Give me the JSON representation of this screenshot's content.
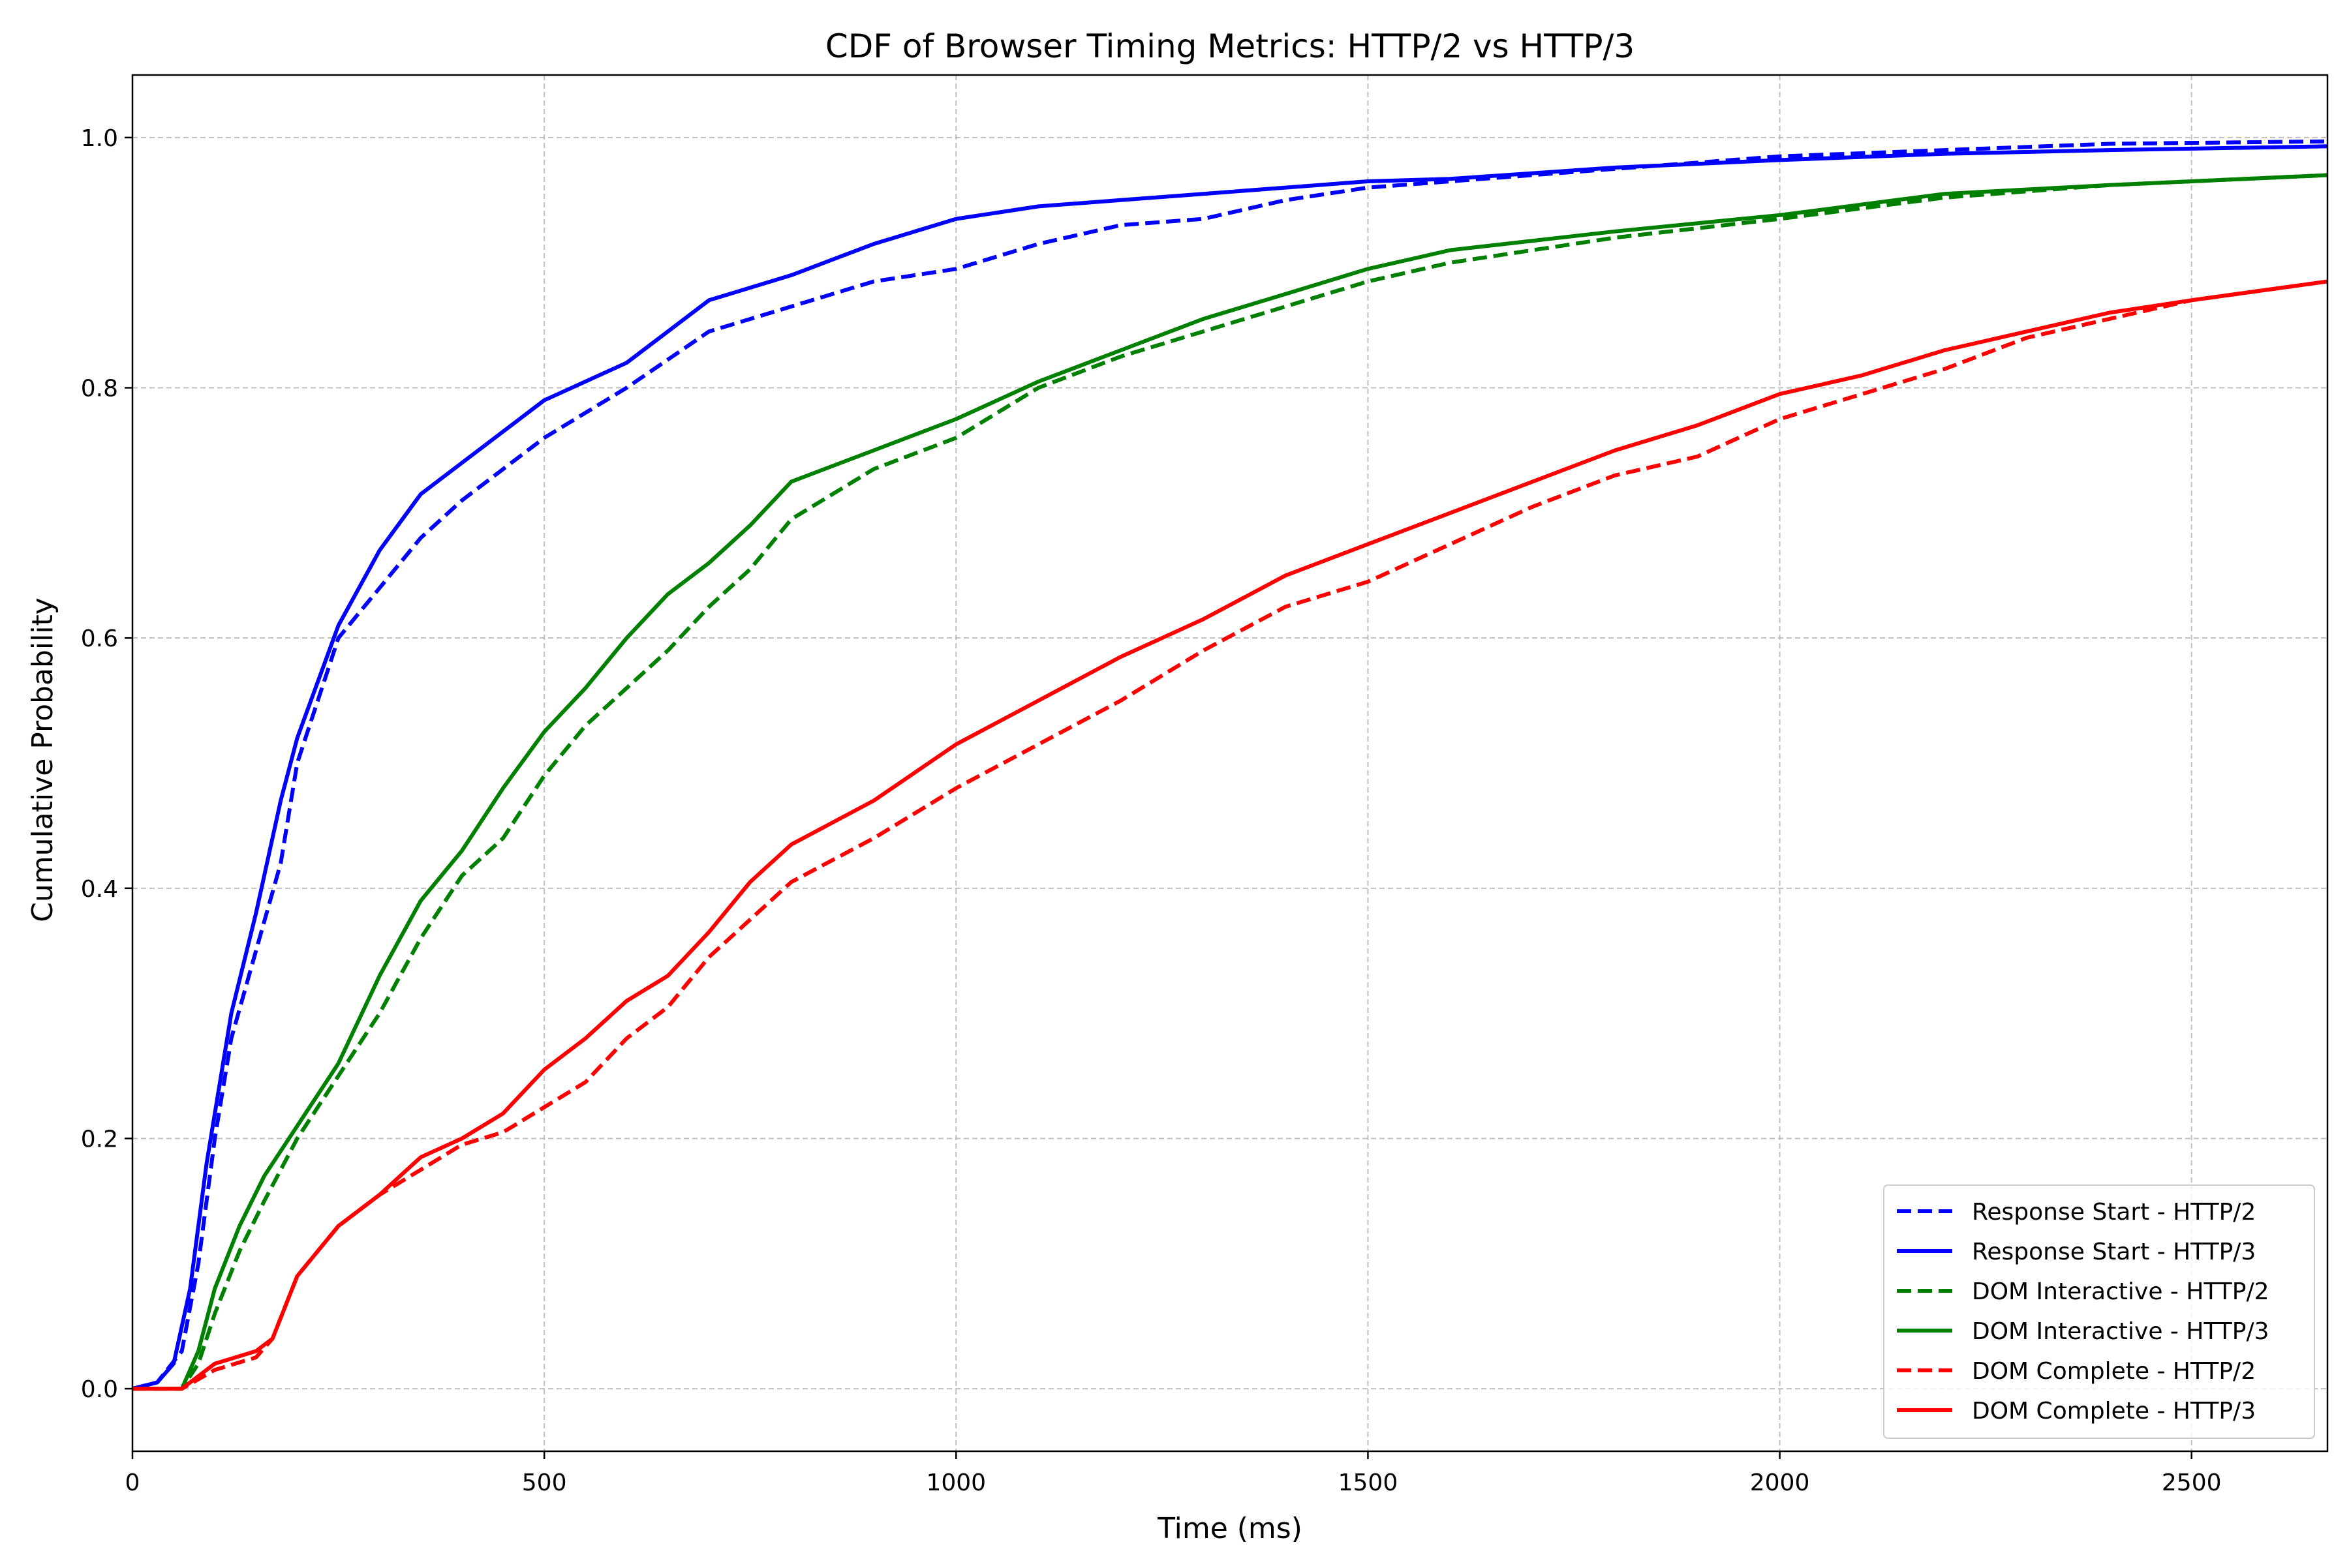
{
  "chart_data": {
    "type": "line",
    "title": "CDF of Browser Timing Metrics: HTTP/2 vs HTTP/3",
    "xlabel": "Time (ms)",
    "ylabel": "Cumulative Probability",
    "xlim": [
      0,
      2665
    ],
    "ylim": [
      -0.05,
      1.05
    ],
    "xticks": [
      0,
      500,
      1000,
      1500,
      2000,
      2500
    ],
    "yticks": [
      0.0,
      0.2,
      0.4,
      0.6,
      0.8,
      1.0
    ],
    "xtick_labels": [
      "0",
      "500",
      "1000",
      "1500",
      "2000",
      "2500"
    ],
    "ytick_labels": [
      "0.0",
      "0.2",
      "0.4",
      "0.6",
      "0.8",
      "1.0"
    ],
    "grid": true,
    "legend_position": "lower-right",
    "series": [
      {
        "name": "Response Start - HTTP/2",
        "color": "#0000ff",
        "linestyle": "dashed",
        "x": [
          0,
          30,
          60,
          80,
          100,
          120,
          150,
          180,
          200,
          250,
          300,
          350,
          400,
          500,
          600,
          700,
          800,
          900,
          1000,
          1100,
          1200,
          1300,
          1400,
          1500,
          1600,
          1800,
          2000,
          2200,
          2400,
          2665
        ],
        "y": [
          0.0,
          0.005,
          0.03,
          0.1,
          0.2,
          0.28,
          0.35,
          0.42,
          0.5,
          0.6,
          0.64,
          0.68,
          0.71,
          0.76,
          0.8,
          0.845,
          0.865,
          0.885,
          0.895,
          0.915,
          0.93,
          0.935,
          0.95,
          0.96,
          0.965,
          0.975,
          0.985,
          0.99,
          0.995,
          0.997
        ]
      },
      {
        "name": "Response Start - HTTP/3",
        "color": "#0000ff",
        "linestyle": "solid",
        "x": [
          0,
          30,
          50,
          70,
          90,
          120,
          150,
          180,
          200,
          250,
          300,
          350,
          400,
          500,
          600,
          700,
          800,
          900,
          1000,
          1100,
          1200,
          1300,
          1400,
          1500,
          1600,
          1800,
          2000,
          2200,
          2400,
          2665
        ],
        "y": [
          0.0,
          0.005,
          0.02,
          0.08,
          0.18,
          0.3,
          0.38,
          0.47,
          0.52,
          0.61,
          0.67,
          0.715,
          0.74,
          0.79,
          0.82,
          0.87,
          0.89,
          0.915,
          0.935,
          0.945,
          0.95,
          0.955,
          0.96,
          0.965,
          0.967,
          0.976,
          0.982,
          0.987,
          0.99,
          0.993
        ]
      },
      {
        "name": "DOM Interactive - HTTP/2",
        "color": "#008000",
        "linestyle": "dashed",
        "x": [
          0,
          60,
          80,
          100,
          130,
          160,
          200,
          250,
          300,
          350,
          400,
          450,
          500,
          550,
          600,
          650,
          700,
          750,
          800,
          900,
          1000,
          1100,
          1200,
          1300,
          1400,
          1500,
          1600,
          1800,
          2000,
          2200,
          2400,
          2665
        ],
        "y": [
          0.0,
          0.0,
          0.02,
          0.06,
          0.11,
          0.15,
          0.2,
          0.25,
          0.3,
          0.36,
          0.41,
          0.44,
          0.49,
          0.53,
          0.56,
          0.59,
          0.625,
          0.655,
          0.695,
          0.735,
          0.76,
          0.8,
          0.825,
          0.845,
          0.865,
          0.885,
          0.9,
          0.92,
          0.935,
          0.952,
          0.962,
          0.97
        ]
      },
      {
        "name": "DOM Interactive - HTTP/3",
        "color": "#008000",
        "linestyle": "solid",
        "x": [
          0,
          60,
          80,
          100,
          130,
          160,
          200,
          250,
          300,
          350,
          400,
          450,
          500,
          550,
          600,
          650,
          700,
          750,
          800,
          900,
          1000,
          1100,
          1200,
          1300,
          1400,
          1500,
          1600,
          1800,
          2000,
          2200,
          2400,
          2665
        ],
        "y": [
          0.0,
          0.0,
          0.03,
          0.08,
          0.13,
          0.17,
          0.21,
          0.26,
          0.33,
          0.39,
          0.43,
          0.48,
          0.525,
          0.56,
          0.6,
          0.635,
          0.66,
          0.69,
          0.725,
          0.75,
          0.775,
          0.805,
          0.83,
          0.855,
          0.875,
          0.895,
          0.91,
          0.925,
          0.938,
          0.955,
          0.962,
          0.97
        ]
      },
      {
        "name": "DOM Complete - HTTP/2",
        "color": "#ff0000",
        "linestyle": "dashed",
        "x": [
          0,
          60,
          100,
          150,
          170,
          200,
          250,
          300,
          350,
          400,
          450,
          500,
          550,
          600,
          650,
          700,
          750,
          800,
          900,
          1000,
          1100,
          1200,
          1300,
          1400,
          1500,
          1600,
          1700,
          1800,
          1900,
          2000,
          2100,
          2200,
          2300,
          2400,
          2500,
          2665
        ],
        "y": [
          0.0,
          0.0,
          0.015,
          0.025,
          0.04,
          0.09,
          0.13,
          0.155,
          0.175,
          0.195,
          0.205,
          0.225,
          0.245,
          0.28,
          0.305,
          0.345,
          0.375,
          0.405,
          0.44,
          0.48,
          0.515,
          0.55,
          0.59,
          0.625,
          0.645,
          0.675,
          0.705,
          0.73,
          0.745,
          0.775,
          0.795,
          0.815,
          0.84,
          0.855,
          0.87,
          0.885
        ]
      },
      {
        "name": "DOM Complete - HTTP/3",
        "color": "#ff0000",
        "linestyle": "solid",
        "x": [
          0,
          60,
          100,
          150,
          170,
          200,
          250,
          300,
          350,
          400,
          450,
          500,
          550,
          600,
          650,
          700,
          750,
          800,
          900,
          1000,
          1100,
          1200,
          1300,
          1400,
          1500,
          1600,
          1700,
          1800,
          1900,
          2000,
          2100,
          2200,
          2300,
          2400,
          2500,
          2665
        ],
        "y": [
          0.0,
          0.0,
          0.02,
          0.03,
          0.04,
          0.09,
          0.13,
          0.155,
          0.185,
          0.2,
          0.22,
          0.255,
          0.28,
          0.31,
          0.33,
          0.365,
          0.405,
          0.435,
          0.47,
          0.515,
          0.55,
          0.585,
          0.615,
          0.65,
          0.675,
          0.7,
          0.725,
          0.75,
          0.77,
          0.795,
          0.81,
          0.83,
          0.845,
          0.86,
          0.87,
          0.885
        ]
      }
    ]
  }
}
